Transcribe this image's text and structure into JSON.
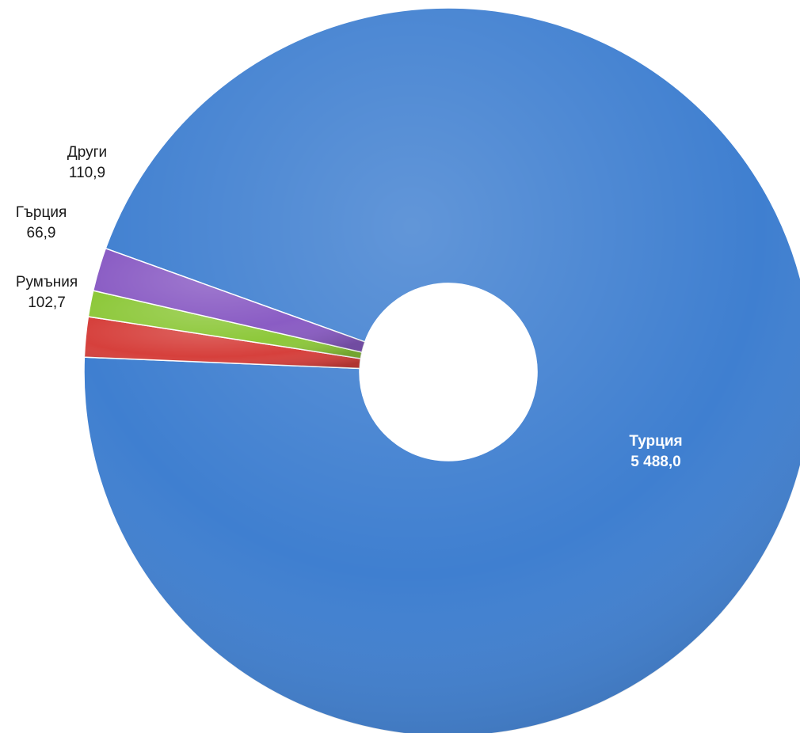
{
  "chart_data": {
    "type": "pie",
    "variant": "doughnut",
    "title": "",
    "slices": [
      {
        "label": "Турция",
        "value": 5488.0,
        "value_text": "5 488,0",
        "color": "#3f7fd0"
      },
      {
        "label": "Румъния",
        "value": 102.7,
        "value_text": "102,7",
        "color": "#d6403c"
      },
      {
        "label": "Гърция",
        "value": 66.9,
        "value_text": "66,9",
        "color": "#8dc83a"
      },
      {
        "label": "Други",
        "value": 110.9,
        "value_text": "110,9",
        "color": "#8a5cc4"
      }
    ],
    "legend": "none",
    "data_labels": "category and value"
  }
}
